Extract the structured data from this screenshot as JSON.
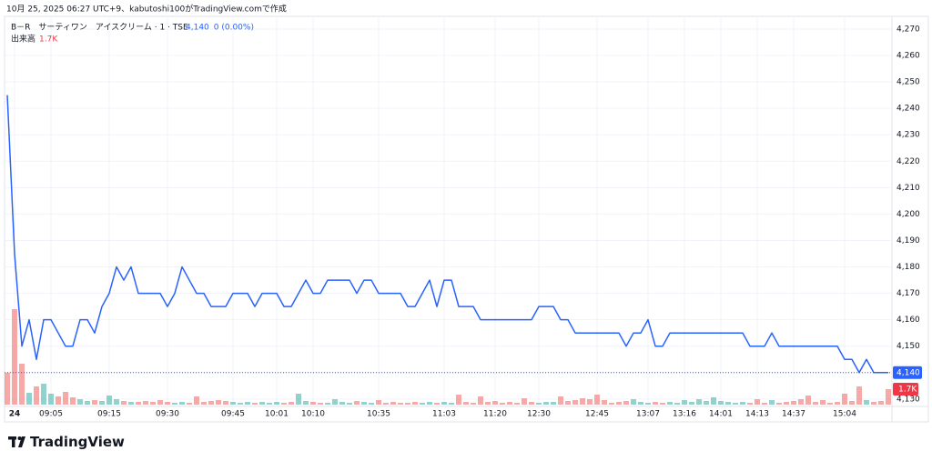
{
  "header": "10月 25, 2025 06:27 UTC+9、kabutoshi100がTradingView.comで作成",
  "brand": "TradingView",
  "chart_data": {
    "type": "line",
    "symbol": "B－R　サーティワン　アイスクリーム · 1 · TSE",
    "change": "0 (0.00%)",
    "last": {
      "value": 4140,
      "label": "4,140"
    },
    "color": "#2962ff",
    "grid": true,
    "categories": [
      null,
      "24",
      null,
      null,
      null,
      null,
      "09:05",
      null,
      null,
      null,
      null,
      null,
      null,
      null,
      "09:15",
      null,
      null,
      null,
      null,
      null,
      null,
      null,
      "09:30",
      null,
      null,
      null,
      null,
      null,
      null,
      null,
      null,
      "09:45",
      null,
      null,
      null,
      null,
      null,
      "10:01",
      null,
      null,
      null,
      null,
      "10:10",
      null,
      null,
      null,
      null,
      null,
      null,
      null,
      null,
      "10:35",
      null,
      null,
      null,
      null,
      null,
      null,
      null,
      null,
      "11:03",
      null,
      null,
      null,
      null,
      null,
      null,
      "11:20",
      null,
      null,
      null,
      null,
      null,
      "12:30",
      null,
      null,
      null,
      null,
      null,
      null,
      null,
      "12:45",
      null,
      null,
      null,
      null,
      null,
      null,
      "13:07",
      null,
      null,
      null,
      null,
      "13:16",
      null,
      null,
      null,
      null,
      "14:01",
      null,
      null,
      null,
      null,
      "14:13",
      null,
      null,
      null,
      null,
      "14:37",
      null,
      null,
      null,
      null,
      null,
      null,
      "15:04",
      null,
      null,
      null,
      null,
      null,
      null
    ],
    "values": [
      4245,
      4185,
      4150,
      4160,
      4145,
      4160,
      4160,
      4155,
      4150,
      4150,
      4160,
      4160,
      4155,
      4165,
      4170,
      4180,
      4175,
      4180,
      4170,
      4170,
      4170,
      4170,
      4165,
      4170,
      4180,
      4175,
      4170,
      4170,
      4165,
      4165,
      4165,
      4170,
      4170,
      4170,
      4165,
      4170,
      4170,
      4170,
      4165,
      4165,
      4170,
      4175,
      4170,
      4170,
      4175,
      4175,
      4175,
      4175,
      4170,
      4175,
      4175,
      4170,
      4170,
      4170,
      4170,
      4165,
      4165,
      4170,
      4175,
      4165,
      4175,
      4175,
      4165,
      4165,
      4165,
      4160,
      4160,
      4160,
      4160,
      4160,
      4160,
      4160,
      4160,
      4165,
      4165,
      4165,
      4160,
      4160,
      4155,
      4155,
      4155,
      4155,
      4155,
      4155,
      4155,
      4150,
      4155,
      4155,
      4160,
      4150,
      4150,
      4155,
      4155,
      4155,
      4155,
      4155,
      4155,
      4155,
      4155,
      4155,
      4155,
      4155,
      4150,
      4150,
      4150,
      4155,
      4150,
      4150,
      4150,
      4150,
      4150,
      4150,
      4150,
      4150,
      4150,
      4145,
      4145,
      4140,
      4145,
      4140,
      4140,
      4140
    ],
    "volume": {
      "name": "出来高",
      "last_label": "1.7K",
      "values": [
        3.5,
        10.5,
        4.5,
        1.3,
        2.0,
        2.3,
        1.2,
        0.9,
        1.4,
        0.8,
        0.6,
        0.4,
        0.5,
        0.4,
        1.0,
        0.6,
        0.4,
        0.3,
        0.3,
        0.4,
        0.3,
        0.5,
        0.3,
        0.2,
        0.3,
        0.2,
        0.9,
        0.3,
        0.4,
        0.5,
        0.4,
        0.3,
        0.2,
        0.3,
        0.2,
        0.3,
        0.2,
        0.3,
        0.2,
        0.3,
        1.2,
        0.4,
        0.3,
        0.2,
        0.2,
        0.6,
        0.3,
        0.2,
        0.4,
        0.3,
        0.2,
        0.5,
        0.2,
        0.3,
        0.2,
        0.2,
        0.3,
        0.2,
        0.3,
        0.2,
        0.3,
        0.2,
        1.1,
        0.3,
        0.2,
        0.9,
        0.3,
        0.4,
        0.2,
        0.3,
        0.2,
        0.7,
        0.3,
        0.2,
        0.3,
        0.3,
        0.9,
        0.4,
        0.5,
        0.7,
        0.6,
        1.1,
        0.5,
        0.2,
        0.3,
        0.4,
        0.6,
        0.3,
        0.2,
        0.3,
        0.2,
        0.3,
        0.2,
        0.5,
        0.3,
        0.6,
        0.4,
        0.8,
        0.4,
        0.3,
        0.2,
        0.3,
        0.2,
        0.6,
        0.2,
        0.5,
        0.2,
        0.3,
        0.4,
        0.6,
        1.0,
        0.3,
        0.5,
        0.2,
        0.3,
        1.2,
        0.4,
        2.0,
        0.5,
        0.3,
        0.4,
        1.7
      ]
    },
    "ylim": [
      4127.2,
      4274.8
    ],
    "yticks": [
      {
        "value": 4130,
        "label": "4,130"
      },
      {
        "value": 4140,
        "label": "4,140"
      },
      {
        "value": 4150,
        "label": "4,150"
      },
      {
        "value": 4160,
        "label": "4,160"
      },
      {
        "value": 4170,
        "label": "4,170"
      },
      {
        "value": 4180,
        "label": "4,180"
      },
      {
        "value": 4190,
        "label": "4,190"
      },
      {
        "value": 4200,
        "label": "4,200"
      },
      {
        "value": 4210,
        "label": "4,210"
      },
      {
        "value": 4220,
        "label": "4,220"
      },
      {
        "value": 4230,
        "label": "4,230"
      },
      {
        "value": 4240,
        "label": "4,240"
      },
      {
        "value": 4250,
        "label": "4,250"
      },
      {
        "value": 4260,
        "label": "4,260"
      },
      {
        "value": 4270,
        "label": "4,270"
      }
    ]
  }
}
